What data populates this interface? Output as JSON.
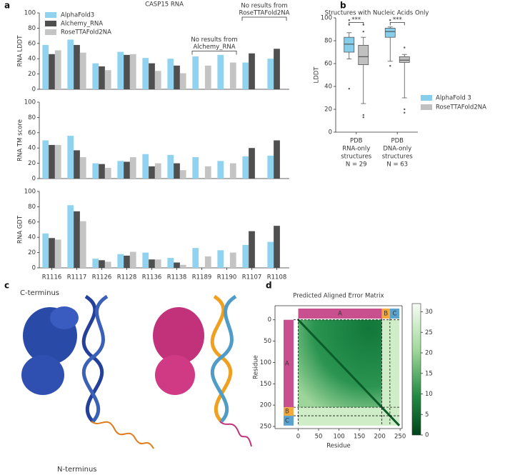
{
  "panel_labels": [
    "a",
    "b",
    "c",
    "d"
  ],
  "structure_labels": [
    "C-terminus",
    "N-terminus"
  ],
  "chart_data": [
    {
      "type": "bar",
      "title": "CASP15 RNA",
      "ylabel": "RNA LDDT",
      "ylim": [
        0,
        100
      ],
      "yticks": [
        0,
        20,
        40,
        60,
        80,
        100
      ],
      "legend": "upper left",
      "series": [
        {
          "name": "AlphaFold3",
          "color": "#8fd3f0",
          "values": [
            58,
            65,
            34,
            49,
            41,
            40,
            43,
            45,
            35,
            40
          ]
        },
        {
          "name": "Alchemy_RNA",
          "color": "#4f4f4f",
          "values": [
            46,
            58,
            30,
            45,
            34,
            31,
            null,
            null,
            47,
            53
          ]
        },
        {
          "name": "RoseTTAFold2NA",
          "color": "#c4c4c4",
          "values": [
            51,
            48,
            25,
            46,
            24,
            21,
            31,
            35,
            null,
            null
          ]
        }
      ],
      "annotations": [
        {
          "text": [
            "No results from",
            "Alchemy_RNA"
          ]
        },
        {
          "text": [
            "No results from",
            "RoseTTAFold2NA"
          ]
        }
      ]
    },
    {
      "type": "bar",
      "ylabel": "RNA TM score",
      "ylim": [
        0,
        100
      ],
      "yticks": [
        0,
        20,
        40,
        60,
        80,
        100
      ],
      "series": [
        {
          "color": "#8fd3f0",
          "values": [
            50,
            56,
            20,
            23,
            32,
            31,
            28,
            23,
            29,
            30
          ]
        },
        {
          "color": "#4f4f4f",
          "values": [
            44,
            37,
            19,
            22,
            16,
            20,
            null,
            null,
            40,
            50
          ]
        },
        {
          "color": "#c4c4c4",
          "values": [
            44,
            28,
            14,
            28,
            20,
            11,
            16,
            20,
            null,
            null
          ]
        }
      ]
    },
    {
      "type": "bar",
      "ylabel": "RNA GDT",
      "categories": [
        "R1116",
        "R1117",
        "R1126",
        "R1128",
        "R1136",
        "R1138",
        "R1189",
        "R1190",
        "R1107",
        "R1108"
      ],
      "ylim": [
        0,
        100
      ],
      "yticks": [
        0,
        20,
        40,
        60,
        80,
        100
      ],
      "series": [
        {
          "color": "#8fd3f0",
          "values": [
            45,
            82,
            12,
            18,
            20,
            13,
            26,
            23,
            30,
            34
          ]
        },
        {
          "color": "#4f4f4f",
          "values": [
            39,
            74,
            10,
            16,
            11,
            7,
            null,
            null,
            48,
            55
          ]
        },
        {
          "color": "#c4c4c4",
          "values": [
            37,
            61,
            8,
            21,
            11,
            4,
            15,
            20,
            null,
            null
          ]
        }
      ]
    },
    {
      "type": "box",
      "title": "Structures with Nucleic Acids Only",
      "ylabel": "LDDT",
      "categories": [
        [
          "PDB",
          "RNA-only",
          "structures",
          "N = 29"
        ],
        [
          "PDB",
          "DNA-only",
          "structures",
          "N = 63"
        ]
      ],
      "ylim": [
        0,
        100
      ],
      "yticks": [
        0,
        20,
        40,
        60,
        80,
        100
      ],
      "legend": "center right",
      "significance": [
        "***",
        "***"
      ],
      "series": [
        {
          "name": "AlphaFold 3",
          "color": "#87ceeb",
          "boxes": [
            {
              "whislo": 64,
              "q1": 70,
              "med": 77,
              "q3": 83,
              "whishi": 87,
              "fliers": [
                38,
                94,
                98
              ]
            },
            {
              "whislo": 62,
              "q1": 83,
              "med": 88,
              "q3": 91,
              "whishi": 92,
              "fliers": [
                58,
                98
              ]
            }
          ]
        },
        {
          "name": "RoseTTAFold2NA",
          "color": "#c0c0c0",
          "boxes": [
            {
              "whislo": 25,
              "q1": 59,
              "med": 66,
              "q3": 76,
              "whishi": 83,
              "fliers": [
                13,
                15,
                88,
                94
              ]
            },
            {
              "whislo": 30,
              "q1": 61,
              "med": 63,
              "q3": 66,
              "whishi": 68,
              "fliers": [
                17,
                20,
                74
              ]
            }
          ]
        }
      ]
    },
    {
      "type": "heatmap",
      "title": "Predicted Aligned Error Matrix",
      "xlabel": "Residue",
      "ylabel": "Residue",
      "xlim": [
        -57,
        255
      ],
      "ylim": [
        255,
        -33
      ],
      "xticks": [
        0,
        50,
        100,
        150,
        200,
        250
      ],
      "yticks": [
        0,
        50,
        100,
        150,
        200,
        250
      ],
      "segments": [
        {
          "label": "A",
          "start": 0,
          "end": 205,
          "color": "#c9508e"
        },
        {
          "label": "B",
          "start": 205,
          "end": 225,
          "color": "#f6a93b"
        },
        {
          "label": "C",
          "start": 225,
          "end": 248,
          "color": "#5ba3cf"
        }
      ],
      "colorbar": {
        "lim": [
          0,
          32
        ],
        "ticks": [
          0,
          5,
          10,
          15,
          20,
          25,
          30
        ]
      }
    }
  ]
}
